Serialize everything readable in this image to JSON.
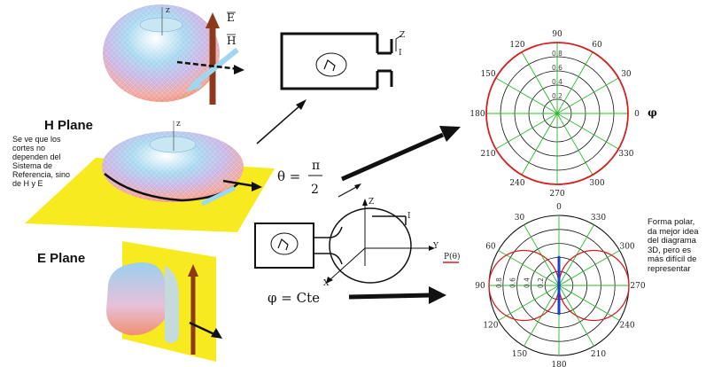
{
  "labels": {
    "h_plane": "H Plane",
    "e_plane": "E Plane",
    "e_vector": "E",
    "h_vector": "H",
    "axis_z": "z",
    "antenna_z": "Z",
    "antenna_i": "I",
    "antenna_y": "Y",
    "antenna_x": "X",
    "p_theta": "P(θ)"
  },
  "equations": {
    "theta_symbol": "θ =",
    "theta_num": "π",
    "theta_den": "2",
    "phi_eq": "φ = Cte",
    "phi_axis": "φ"
  },
  "notes": {
    "left": "Se ve que los cortes no dependen del Sistema de Referencia, sino de H y E",
    "right": "Forma polar, da mejor idea del diagrama 3D, pero es más difícil de representar"
  },
  "polar_top": {
    "angles": [
      "90",
      "60",
      "30",
      "0",
      "330",
      "300",
      "270",
      "240",
      "210",
      "180",
      "150",
      "120"
    ],
    "radial": [
      "0.8",
      "0.6",
      "0.4",
      "0.2"
    ],
    "pattern": "circle",
    "pattern_color": "#d42020",
    "grid_color": "#2db82d"
  },
  "polar_bottom": {
    "angles": [
      "0",
      "30",
      "60",
      "90",
      "120",
      "150",
      "180",
      "210",
      "240",
      "270",
      "300",
      "330"
    ],
    "radial": [
      "0.8",
      "0.6",
      "0.4",
      "0.2"
    ],
    "pattern": "figure-eight",
    "pattern_color": "#d42020",
    "axis_color": "#1a3fd6",
    "grid_color": "#2db82d"
  },
  "colors": {
    "plane": "#f7ea1e",
    "arrow_shaft": "#8b3a1e",
    "h_arrow": "#9fd6f0"
  }
}
